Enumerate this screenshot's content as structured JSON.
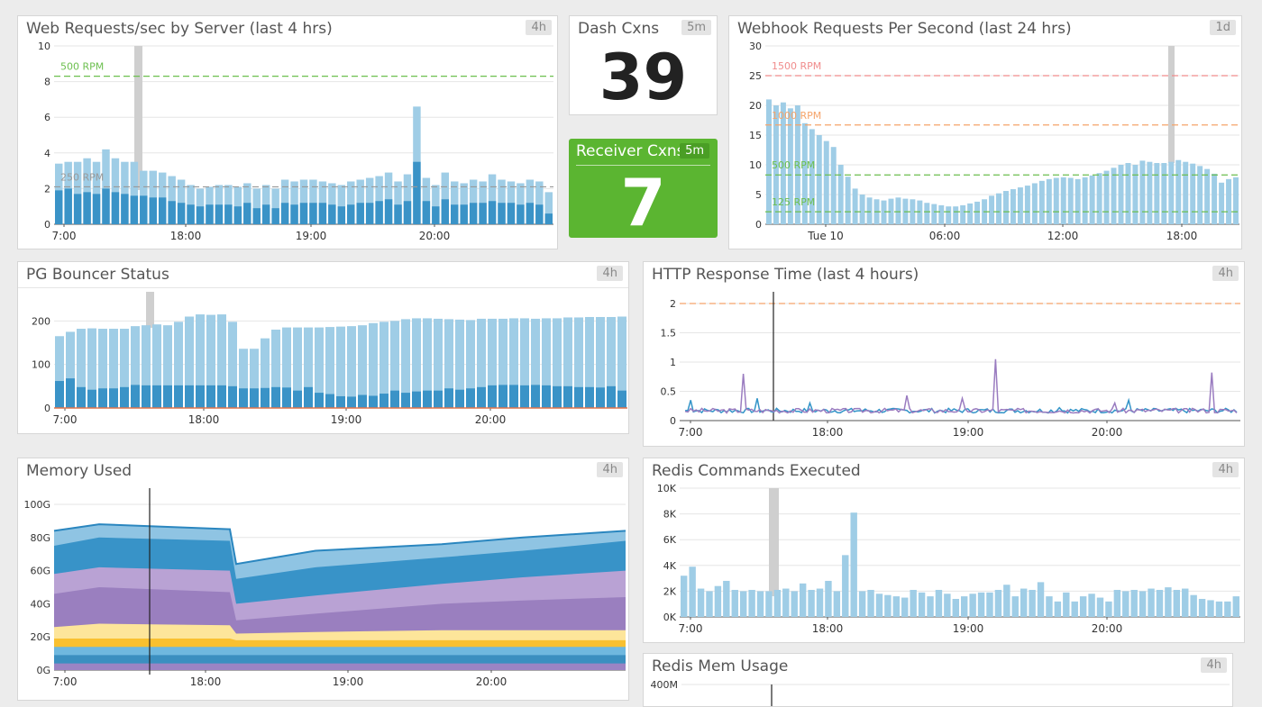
{
  "panels": {
    "web_requests": {
      "title": "Web Requests/sec by Server (last 4 hrs)",
      "badge": "4h",
      "y_ticks": [
        "0",
        "2",
        "4",
        "6",
        "8",
        "10"
      ],
      "x_ticks": [
        "7:00",
        "18:00",
        "19:00",
        "20:00"
      ],
      "thresholds": [
        {
          "label": "500 RPM",
          "value": 8.3
        },
        {
          "label": "250 RPM",
          "value": 2.1
        }
      ]
    },
    "dash_cxns": {
      "title": "Dash Cxns",
      "badge": "5m",
      "value": "39"
    },
    "receiver_cxns": {
      "title": "Receiver Cxns",
      "badge": "5m",
      "value": "7"
    },
    "webhook": {
      "title": "Webhook Requests Per Second (last 24 hrs)",
      "badge": "1d",
      "y_ticks": [
        "0",
        "5",
        "10",
        "15",
        "20",
        "25",
        "30"
      ],
      "x_ticks": [
        "Tue 10",
        "06:00",
        "12:00",
        "18:00"
      ],
      "thresholds": [
        {
          "label": "1500 RPM",
          "value": 25
        },
        {
          "label": "1000 RPM",
          "value": 16.7
        },
        {
          "label": "500 RPM",
          "value": 8.3
        },
        {
          "label": "125 RPM",
          "value": 2.1
        }
      ]
    },
    "pg_bouncer": {
      "title": "PG Bouncer Status",
      "badge": "4h",
      "y_ticks": [
        "0",
        "100",
        "200"
      ],
      "x_ticks": [
        "7:00",
        "18:00",
        "19:00",
        "20:00"
      ]
    },
    "http_response": {
      "title": "HTTP Response Time (last 4 hours)",
      "badge": "4h",
      "y_ticks": [
        "0",
        "0.5",
        "1",
        "1.5",
        "2"
      ],
      "x_ticks": [
        "7:00",
        "18:00",
        "19:00",
        "20:00"
      ]
    },
    "memory": {
      "title": "Memory Used",
      "badge": "4h",
      "y_ticks": [
        "0G",
        "20G",
        "40G",
        "60G",
        "80G",
        "100G"
      ],
      "x_ticks": [
        "7:00",
        "18:00",
        "19:00",
        "20:00"
      ]
    },
    "redis_cmds": {
      "title": "Redis Commands Executed",
      "badge": "4h",
      "y_ticks": [
        "0K",
        "2K",
        "4K",
        "6K",
        "8K",
        "10K"
      ],
      "x_ticks": [
        "7:00",
        "18:00",
        "19:00",
        "20:00"
      ]
    },
    "redis_mem": {
      "title": "Redis Mem Usage",
      "badge": "4h",
      "y_ticks": [
        "400M"
      ]
    }
  },
  "colors": {
    "bar_light": "#9fcde6",
    "bar_dark": "#3a93c7",
    "green_line": "#6cbf4f",
    "gray_line": "#999999",
    "orange_line": "#f5a46a",
    "red_line": "#f08c8c",
    "receiver_bg": "#5bb531",
    "line_blue": "#3294c8",
    "line_purple": "#9a7cc0"
  },
  "chart_data": [
    {
      "type": "bar",
      "id": "web_requests",
      "ylim": [
        0,
        10
      ],
      "series": [
        {
          "values": [
            3.4,
            3.5,
            3.5,
            3.7,
            3.5,
            4.2,
            3.7,
            3.5,
            3.5,
            3.0,
            3.0,
            2.9,
            2.7,
            2.5,
            2.2,
            2.0,
            2.1,
            2.2,
            2.2,
            2.1,
            2.3,
            2.0,
            2.2,
            2.0,
            2.5,
            2.4,
            2.5,
            2.5,
            2.4,
            2.3,
            2.2,
            2.4,
            2.5,
            2.6,
            2.7,
            2.9,
            2.4,
            2.8,
            6.6,
            2.6,
            2.2,
            2.9,
            2.4,
            2.3,
            2.5,
            2.4,
            2.8,
            2.5,
            2.4,
            2.3,
            2.5,
            2.4,
            1.8
          ]
        },
        {
          "values": [
            1.9,
            2.0,
            1.7,
            1.8,
            1.7,
            2.0,
            1.8,
            1.7,
            1.6,
            1.6,
            1.5,
            1.5,
            1.3,
            1.2,
            1.1,
            1.0,
            1.1,
            1.1,
            1.1,
            1.0,
            1.2,
            0.9,
            1.1,
            0.9,
            1.2,
            1.1,
            1.2,
            1.2,
            1.2,
            1.1,
            1.0,
            1.1,
            1.2,
            1.2,
            1.3,
            1.4,
            1.1,
            1.3,
            3.5,
            1.3,
            1.0,
            1.4,
            1.1,
            1.1,
            1.2,
            1.2,
            1.3,
            1.2,
            1.2,
            1.1,
            1.2,
            1.1,
            0.6
          ]
        }
      ]
    },
    {
      "type": "bar",
      "id": "webhook",
      "ylim": [
        0,
        30
      ],
      "values": [
        21,
        20,
        20.5,
        19.5,
        20,
        17,
        16,
        15,
        14,
        13,
        10,
        8,
        6,
        5,
        4.5,
        4.2,
        4,
        4.3,
        4.5,
        4.3,
        4.2,
        4,
        3.6,
        3.4,
        3.2,
        3.0,
        3.0,
        3.2,
        3.5,
        3.8,
        4.2,
        4.8,
        5.2,
        5.6,
        5.9,
        6.2,
        6.5,
        6.9,
        7.3,
        7.6,
        7.8,
        7.9,
        7.8,
        7.6,
        7.9,
        8.2,
        8.6,
        9.0,
        9.5,
        10.0,
        10.3,
        10.0,
        10.7,
        10.5,
        10.3,
        10.3,
        10.5,
        10.8,
        10.5,
        10.2,
        9.8,
        9.3,
        8.5,
        7.0,
        7.6,
        7.9
      ]
    },
    {
      "type": "bar",
      "id": "pg_bouncer",
      "ylim": [
        0,
        260
      ],
      "series": [
        {
          "values": [
            165,
            175,
            182,
            183,
            182,
            182,
            182,
            188,
            190,
            192,
            190,
            198,
            210,
            215,
            214,
            215,
            198,
            136,
            136,
            160,
            180,
            185,
            185,
            185,
            185,
            186,
            187,
            188,
            190,
            195,
            198,
            200,
            204,
            206,
            206,
            205,
            204,
            203,
            202,
            205,
            205,
            205,
            206,
            206,
            205,
            206,
            206,
            208,
            208,
            209,
            209,
            209,
            210
          ]
        },
        {
          "values": [
            62,
            68,
            48,
            42,
            45,
            45,
            48,
            53,
            52,
            52,
            52,
            52,
            52,
            52,
            52,
            52,
            50,
            45,
            45,
            46,
            48,
            47,
            40,
            48,
            35,
            32,
            27,
            26,
            30,
            28,
            33,
            40,
            35,
            38,
            40,
            40,
            45,
            42,
            45,
            48,
            52,
            53,
            53,
            52,
            53,
            52,
            50,
            50,
            48,
            48,
            47,
            50,
            40
          ]
        }
      ]
    },
    {
      "type": "line",
      "id": "http_response",
      "ylim": [
        0,
        2.2
      ]
    },
    {
      "type": "area",
      "id": "memory",
      "ylim": [
        0,
        110
      ]
    },
    {
      "type": "bar",
      "id": "redis_cmds",
      "ylim": [
        0,
        10
      ],
      "values": [
        3.2,
        3.9,
        2.2,
        2.0,
        2.4,
        2.8,
        2.1,
        2.0,
        2.1,
        2.0,
        2.0,
        2.1,
        2.2,
        2.0,
        2.6,
        2.1,
        2.2,
        2.8,
        2.0,
        4.8,
        8.1,
        2.0,
        2.1,
        1.8,
        1.7,
        1.6,
        1.5,
        2.1,
        1.9,
        1.6,
        2.1,
        1.8,
        1.4,
        1.6,
        1.8,
        1.9,
        1.9,
        2.1,
        2.5,
        1.6,
        2.2,
        2.1,
        2.7,
        1.6,
        1.2,
        1.9,
        1.2,
        1.6,
        1.8,
        1.5,
        1.2,
        2.1,
        2.0,
        2.1,
        2.0,
        2.2,
        2.1,
        2.3,
        2.1,
        2.2,
        1.7,
        1.4,
        1.3,
        1.2,
        1.2,
        1.6
      ]
    }
  ]
}
